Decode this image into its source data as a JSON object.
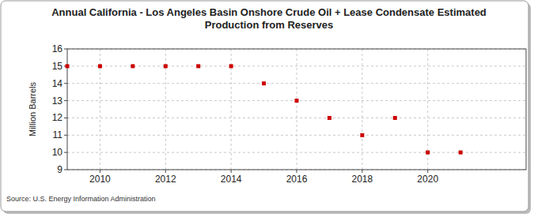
{
  "chart_data": {
    "type": "scatter",
    "title": "Annual California - Los Angeles Basin Onshore Crude Oil + Lease Condensate Estimated Production from Reserves",
    "y_label": "Million Barrels",
    "source": "Source: U.S. Energy Information Administration",
    "x": [
      2009,
      2010,
      2011,
      2012,
      2013,
      2014,
      2015,
      2016,
      2017,
      2018,
      2019,
      2020,
      2021
    ],
    "values": [
      15,
      15,
      15,
      15,
      15,
      15,
      14,
      13,
      12,
      11,
      12,
      10,
      10
    ],
    "color": "#cc0000",
    "marker": "square",
    "xlim": [
      2009,
      2023
    ],
    "xticks": [
      2010,
      2012,
      2014,
      2016,
      2018,
      2020
    ],
    "ylim": [
      9,
      16
    ],
    "yticks": [
      9,
      10,
      11,
      12,
      13,
      14,
      15,
      16
    ],
    "grid": true
  }
}
